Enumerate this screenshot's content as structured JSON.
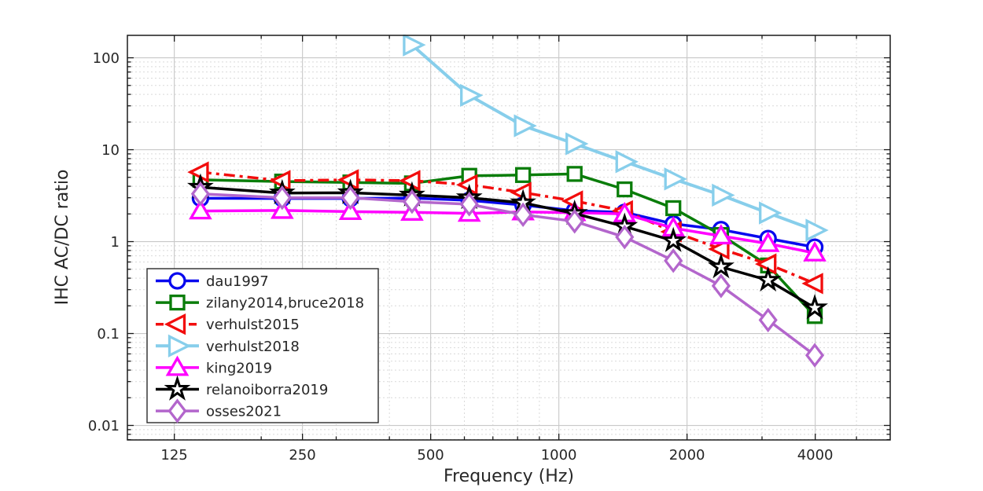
{
  "axes": {
    "xlabel": "Frequency (Hz)",
    "ylabel": "IHC AC/DC ratio",
    "x_tick_labels": [
      "125",
      "250",
      "500",
      "1000",
      "2000",
      "4000"
    ],
    "y_tick_labels": [
      "0.01",
      "0.1",
      "1",
      "10",
      "100"
    ]
  },
  "colors": {
    "grid_major": "#c8c8c8",
    "grid_minor": "#d9d9d9",
    "spine": "#1a1a1a",
    "tick_text": "#262626",
    "legend_border": "#2b2b2b",
    "background": "#ffffff"
  },
  "chart_data": {
    "type": "line",
    "title": "",
    "xlabel": "Frequency (Hz)",
    "ylabel": "IHC AC/DC ratio",
    "x_scale": "log",
    "y_scale": "log",
    "xlim": [
      97,
      6000
    ],
    "ylim": [
      0.00695,
      175.4
    ],
    "x_ticks": [
      125,
      250,
      500,
      1000,
      2000,
      4000
    ],
    "y_ticks": [
      0.01,
      0.1,
      1,
      10,
      100
    ],
    "grid": true,
    "minor_grid": true,
    "legend_position": "southwest",
    "x": [
      144,
      224,
      324,
      452,
      616,
      824,
      1089,
      1427,
      1857,
      2404,
      3100,
      3990
    ],
    "series": [
      {
        "name": "dau1997",
        "color": "#0808ee",
        "marker": "circle",
        "line_style": "solid",
        "values": [
          2.96,
          2.95,
          2.95,
          2.98,
          2.81,
          2.5,
          2.17,
          2.08,
          1.56,
          1.35,
          1.08,
          0.87
        ]
      },
      {
        "name": "zilany2014,bruce2018",
        "color": "#0a7d0a",
        "marker": "square",
        "line_style": "solid",
        "values": [
          4.7,
          4.5,
          4.4,
          4.3,
          5.2,
          5.3,
          5.45,
          3.7,
          2.31,
          1.18,
          0.55,
          0.155
        ]
      },
      {
        "name": "verhulst2015",
        "color": "#f20d0d",
        "marker": "triangle-left",
        "line_style": "dash-dot",
        "values": [
          5.7,
          4.6,
          4.7,
          4.6,
          4.15,
          3.42,
          2.76,
          2.16,
          1.28,
          0.83,
          0.57,
          0.35
        ]
      },
      {
        "name": "verhulst2018",
        "color": "#87ceeb",
        "marker": "triangle-right",
        "line_style": "solid",
        "values": [
          null,
          null,
          null,
          138,
          39,
          18.2,
          11.6,
          7.4,
          4.8,
          3.2,
          2.05,
          1.33
        ]
      },
      {
        "name": "king2019",
        "color": "#ff00ff",
        "marker": "triangle-up",
        "line_style": "solid",
        "values": [
          2.15,
          2.18,
          2.12,
          2.08,
          2.03,
          2.1,
          2.06,
          2.0,
          1.4,
          1.15,
          0.95,
          0.75
        ]
      },
      {
        "name": "relanoiborra2019",
        "color": "#000000",
        "marker": "star",
        "line_style": "solid",
        "values": [
          3.9,
          3.38,
          3.4,
          3.2,
          3.0,
          2.64,
          2.02,
          1.46,
          1.02,
          0.53,
          0.38,
          0.19
        ]
      },
      {
        "name": "osses2021",
        "color": "#b366cc",
        "marker": "diamond",
        "line_style": "solid",
        "values": [
          3.31,
          3.0,
          3.0,
          2.72,
          2.55,
          1.96,
          1.66,
          1.12,
          0.62,
          0.33,
          0.14,
          0.058
        ]
      }
    ]
  }
}
